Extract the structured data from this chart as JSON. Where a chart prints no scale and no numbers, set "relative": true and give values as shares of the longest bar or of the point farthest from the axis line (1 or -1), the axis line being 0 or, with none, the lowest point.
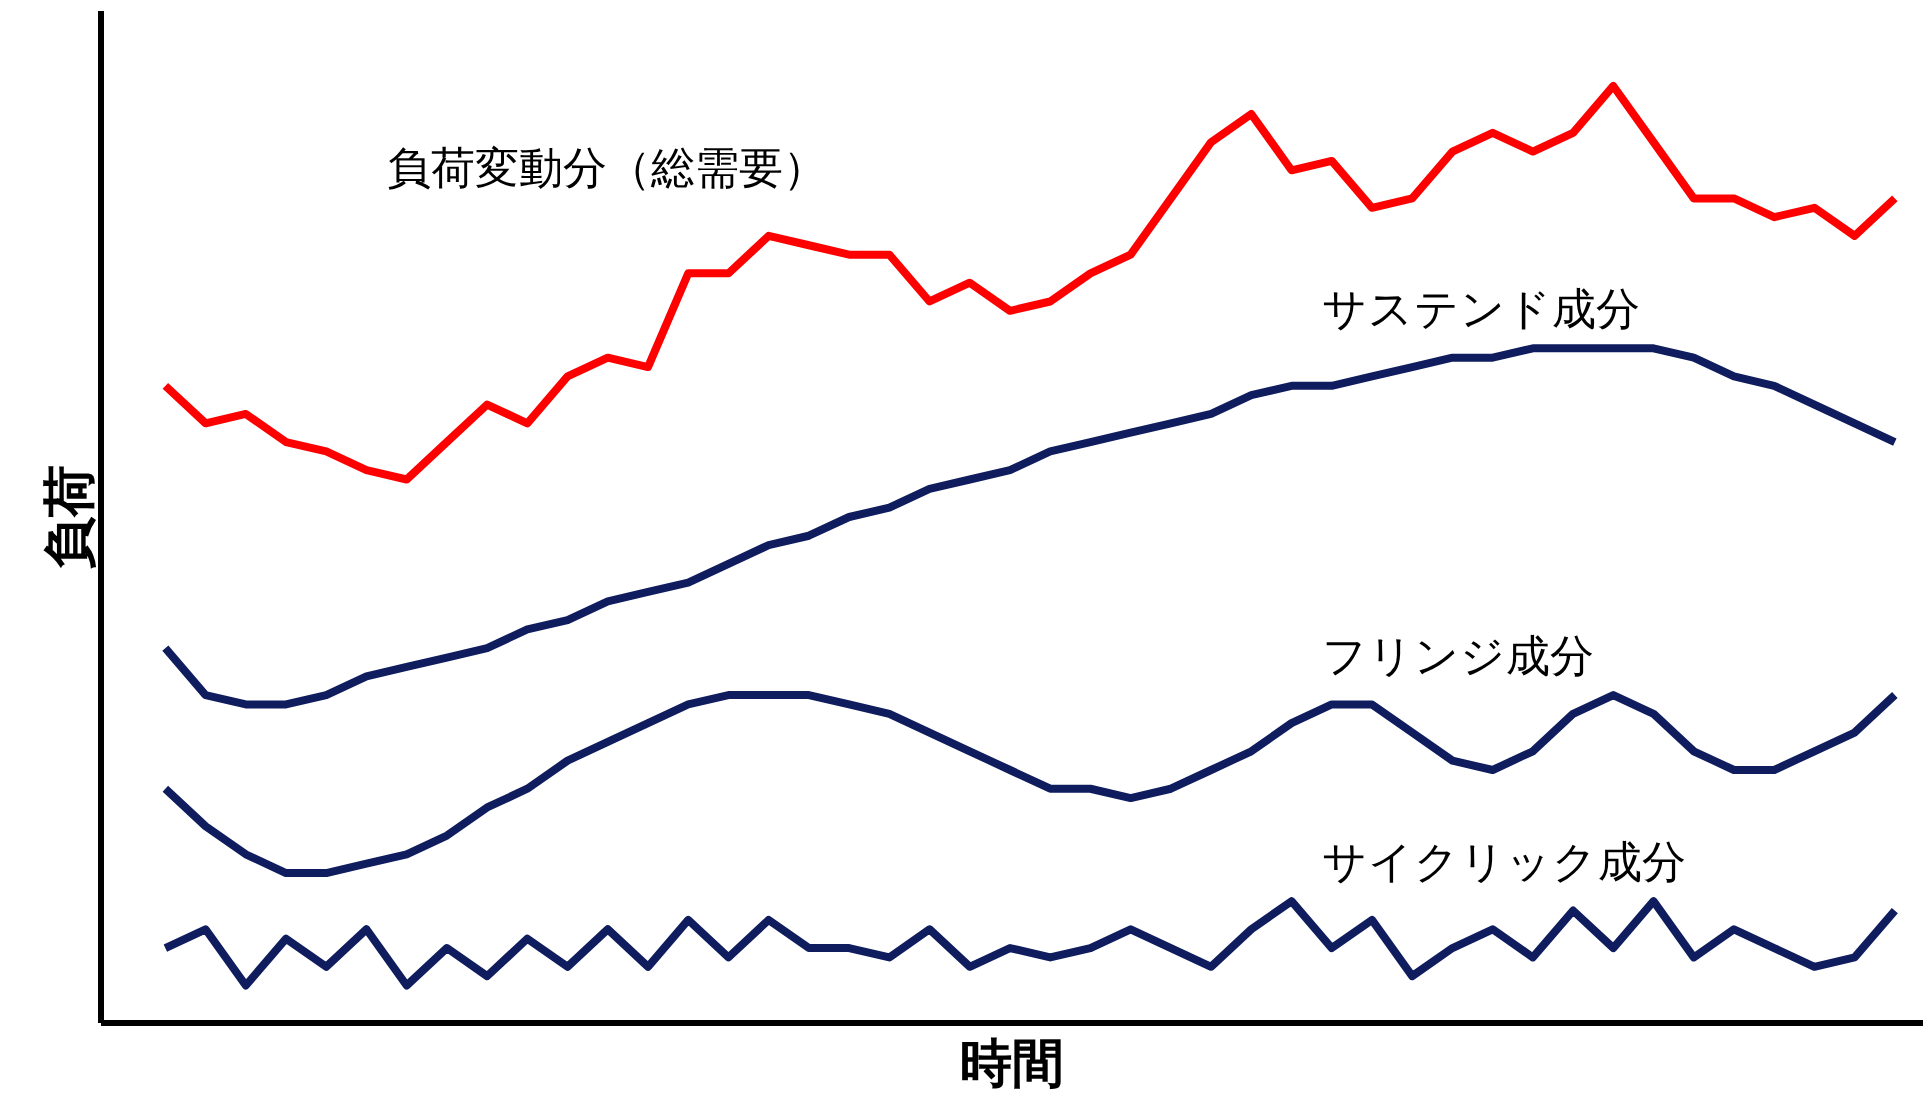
{
  "chart_data": {
    "type": "line",
    "relative": true,
    "xlabel": "時間",
    "ylabel": "負荷",
    "legend": false,
    "grid": false,
    "categories": [
      null,
      null,
      null,
      null,
      null,
      null,
      null,
      null,
      null,
      null,
      null,
      null,
      null,
      null,
      null,
      null,
      null,
      null,
      null,
      null,
      null,
      null,
      null,
      null,
      null,
      null,
      null,
      null,
      null,
      null,
      null,
      null,
      null,
      null,
      null,
      null,
      null,
      null,
      null,
      null,
      null,
      null,
      null,
      null
    ],
    "series": [
      {
        "name": "負荷変動分（総需要）",
        "color": "#ff0000",
        "values": [
          0.68,
          0.64,
          0.65,
          0.62,
          0.61,
          0.59,
          0.58,
          0.62,
          0.66,
          0.64,
          0.69,
          0.71,
          0.7,
          0.8,
          0.8,
          0.84,
          0.83,
          0.82,
          0.82,
          0.77,
          0.79,
          0.76,
          0.77,
          0.8,
          0.82,
          0.88,
          0.94,
          0.97,
          0.91,
          0.92,
          0.87,
          0.88,
          0.93,
          0.95,
          0.93,
          0.95,
          1.0,
          0.94,
          0.88,
          0.88,
          0.86,
          0.87,
          0.84,
          0.88
        ]
      },
      {
        "name": "サステンド成分",
        "color": "#0f1d5e",
        "values": [
          0.4,
          0.35,
          0.34,
          0.34,
          0.35,
          0.37,
          0.38,
          0.39,
          0.4,
          0.42,
          0.43,
          0.45,
          0.46,
          0.47,
          0.49,
          0.51,
          0.52,
          0.54,
          0.55,
          0.57,
          0.58,
          0.59,
          0.61,
          0.62,
          0.63,
          0.64,
          0.65,
          0.67,
          0.68,
          0.68,
          0.69,
          0.7,
          0.71,
          0.71,
          0.72,
          0.72,
          0.72,
          0.72,
          0.71,
          0.69,
          0.68,
          0.66,
          0.64,
          0.62
        ]
      },
      {
        "name": "フリンジ成分",
        "color": "#0f1d5e",
        "values": [
          0.25,
          0.21,
          0.18,
          0.16,
          0.16,
          0.17,
          0.18,
          0.2,
          0.23,
          0.25,
          0.28,
          0.3,
          0.32,
          0.34,
          0.35,
          0.35,
          0.35,
          0.34,
          0.33,
          0.31,
          0.29,
          0.27,
          0.25,
          0.25,
          0.24,
          0.25,
          0.27,
          0.29,
          0.32,
          0.34,
          0.34,
          0.31,
          0.28,
          0.27,
          0.29,
          0.33,
          0.35,
          0.33,
          0.29,
          0.27,
          0.27,
          0.29,
          0.31,
          0.35
        ]
      },
      {
        "name": "サイクリック成分",
        "color": "#0f1d5e",
        "values": [
          0.08,
          0.1,
          0.04,
          0.09,
          0.06,
          0.1,
          0.04,
          0.08,
          0.05,
          0.09,
          0.06,
          0.1,
          0.06,
          0.11,
          0.07,
          0.11,
          0.08,
          0.08,
          0.07,
          0.1,
          0.06,
          0.08,
          0.07,
          0.08,
          0.1,
          0.08,
          0.06,
          0.1,
          0.13,
          0.08,
          0.11,
          0.05,
          0.08,
          0.1,
          0.07,
          0.12,
          0.08,
          0.13,
          0.07,
          0.1,
          0.08,
          0.06,
          0.07,
          0.12
        ]
      }
    ]
  }
}
